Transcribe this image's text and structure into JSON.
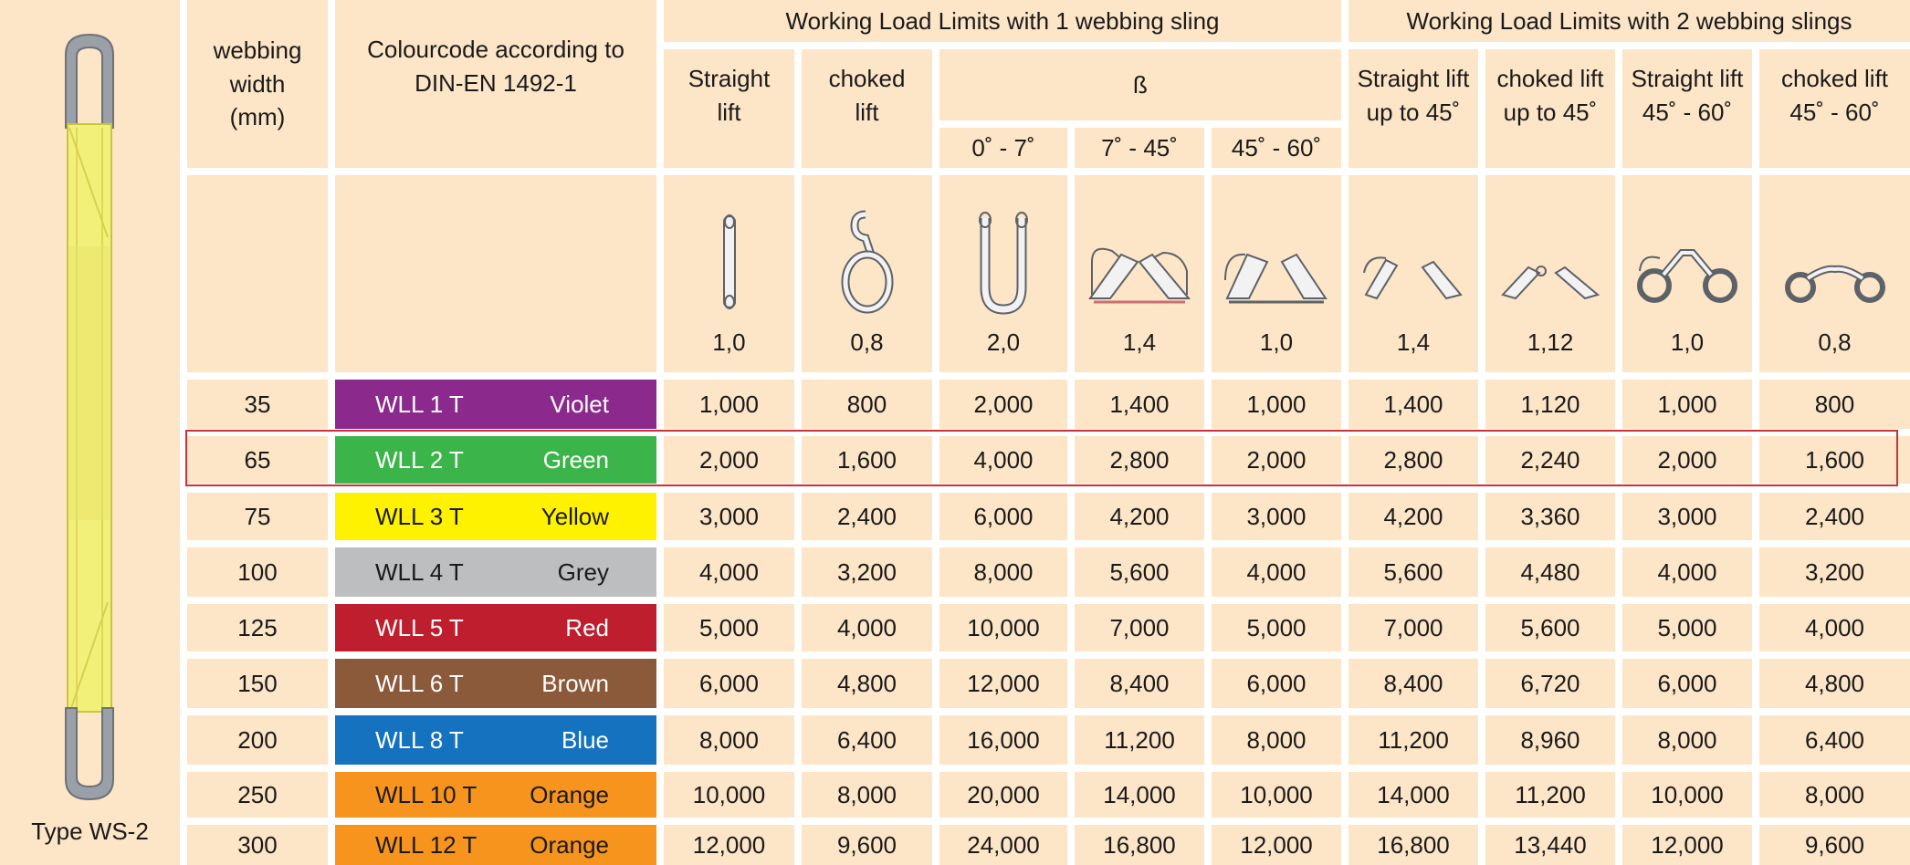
{
  "product": {
    "type_label": "Type WS-2"
  },
  "headers": {
    "width_label": "webbing\nwidth\n(mm)",
    "colour_label": "Colourcode according to\nDIN-EN 1492-1",
    "group1": "Working Load Limits with 1 webbing sling",
    "group2": "Working Load Limits with 2 webbing slings",
    "straight": "Straight\nlift",
    "choked": "choked\nlift",
    "beta": "ß",
    "beta_0_7": "0˚ - 7˚",
    "beta_7_45": "7˚ - 45˚",
    "beta_45_60": "45˚ - 60˚",
    "straight_45": "Straight lift\nup to 45˚",
    "choked_45": "choked lift\nup to 45˚",
    "straight_45_60": "Straight lift\n45˚ - 60˚",
    "choked_45_60": "choked lift\n45˚ - 60˚"
  },
  "factors": [
    "1,0",
    "0,8",
    "2,0",
    "1,4",
    "1,0",
    "1,4",
    "1,12",
    "1,0",
    "0,8"
  ],
  "rows": [
    {
      "width": "35",
      "wll": "WLL 1 T",
      "colour": "Violet",
      "hex": "#8b2a8c",
      "text_dark": false,
      "values": [
        "1,000",
        "800",
        "2,000",
        "1,400",
        "1,000",
        "1,400",
        "1,120",
        "1,000",
        "800"
      ]
    },
    {
      "width": "65",
      "wll": "WLL 2 T",
      "colour": "Green",
      "hex": "#3bb54a",
      "text_dark": false,
      "values": [
        "2,000",
        "1,600",
        "4,000",
        "2,800",
        "2,000",
        "2,800",
        "2,240",
        "2,000",
        "1,600"
      ]
    },
    {
      "width": "75",
      "wll": "WLL 3 T",
      "colour": "Yellow",
      "hex": "#fff200",
      "text_dark": true,
      "values": [
        "3,000",
        "2,400",
        "6,000",
        "4,200",
        "3,000",
        "4,200",
        "3,360",
        "3,000",
        "2,400"
      ]
    },
    {
      "width": "100",
      "wll": "WLL 4 T",
      "colour": "Grey",
      "hex": "#bcbec0",
      "text_dark": true,
      "values": [
        "4,000",
        "3,200",
        "8,000",
        "5,600",
        "4,000",
        "5,600",
        "4,480",
        "4,000",
        "3,200"
      ]
    },
    {
      "width": "125",
      "wll": "WLL 5 T",
      "colour": "Red",
      "hex": "#be1e2d",
      "text_dark": false,
      "values": [
        "5,000",
        "4,000",
        "10,000",
        "7,000",
        "5,000",
        "7,000",
        "5,600",
        "5,000",
        "4,000"
      ]
    },
    {
      "width": "150",
      "wll": "WLL 6 T",
      "colour": "Brown",
      "hex": "#8b5a3a",
      "text_dark": false,
      "values": [
        "6,000",
        "4,800",
        "12,000",
        "8,400",
        "6,000",
        "8,400",
        "6,720",
        "6,000",
        "4,800"
      ]
    },
    {
      "width": "200",
      "wll": "WLL 8 T",
      "colour": "Blue",
      "hex": "#1472bf",
      "text_dark": false,
      "values": [
        "8,000",
        "6,400",
        "16,000",
        "11,200",
        "8,000",
        "11,200",
        "8,960",
        "8,000",
        "6,400"
      ]
    },
    {
      "width": "250",
      "wll": "WLL 10 T",
      "colour": "Orange",
      "hex": "#f7941d",
      "text_dark": true,
      "values": [
        "10,000",
        "8,000",
        "20,000",
        "14,000",
        "10,000",
        "14,000",
        "11,200",
        "10,000",
        "8,000"
      ]
    },
    {
      "width": "300",
      "wll": "WLL 12 T",
      "colour": "Orange",
      "hex": "#f7941d",
      "text_dark": true,
      "values": [
        "12,000",
        "9,600",
        "24,000",
        "16,800",
        "12,000",
        "16,800",
        "13,440",
        "12,000",
        "9,600"
      ]
    }
  ],
  "highlighted_row": 1,
  "colors": {
    "panel": "#fde5c7",
    "grid": "#ffffff",
    "highlight_border": "#c8333a",
    "sling_yellow": "#f3f07a",
    "sling_grey": "#9aa0a8"
  },
  "icons": [
    "straight-lift-icon",
    "choked-lift-icon",
    "basket-0-7-icon",
    "basket-7-45-icon",
    "basket-45-60-icon",
    "two-sling-straight-45-icon",
    "two-sling-choked-45-icon",
    "two-sling-straight-45-60-icon",
    "two-sling-choked-45-60-icon"
  ]
}
